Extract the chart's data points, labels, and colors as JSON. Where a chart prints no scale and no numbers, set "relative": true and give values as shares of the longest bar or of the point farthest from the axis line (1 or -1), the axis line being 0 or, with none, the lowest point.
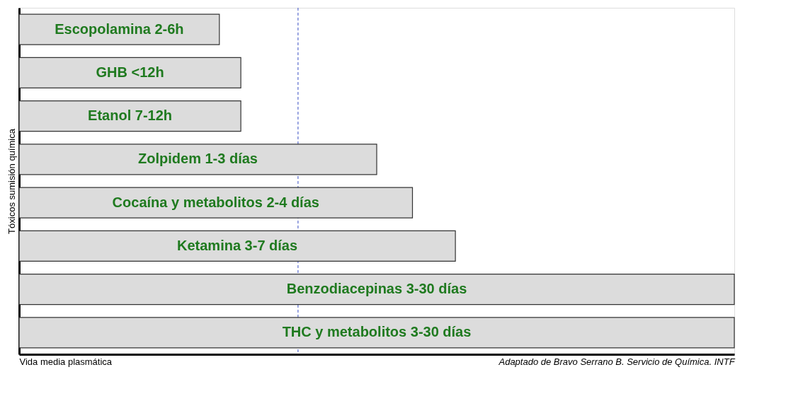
{
  "chart_data": {
    "type": "bar",
    "orientation": "horizontal",
    "relative": true,
    "categories": [
      "Escopolamina 2-6h",
      "GHB <12h",
      "Etanol 7-12h",
      "Zolpidem 1-3 días",
      "Cocaína y metabolitos 2-4 días",
      "Ketamina 3-7 días",
      "Benzodiacepinas 3-30 días",
      "THC y metabolitos 3-30 días"
    ],
    "values": [
      0.28,
      0.31,
      0.31,
      0.5,
      0.55,
      0.61,
      1.0,
      1.0
    ],
    "color": "#dcdcdc",
    "xlabel": "Vida media plasmática",
    "ylabel": "Tóxicos sumisión química",
    "ref_lines": [
      {
        "axis": "x",
        "value": 0.39,
        "color": "#3a4fc4",
        "line_style": "dashed"
      }
    ],
    "annotations": [
      "Adaptado de Bravo Serrano B. Servicio de Química. INTF"
    ],
    "grid": false
  }
}
